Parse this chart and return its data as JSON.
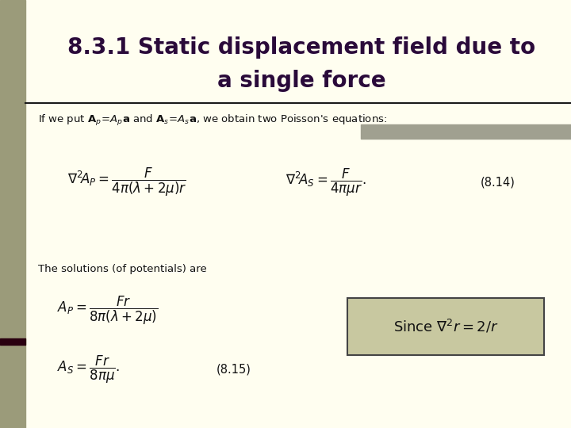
{
  "bg_color": "#fffef0",
  "left_bar_color": "#9b9b7a",
  "title_line1": "8.3.1 Static displacement field due to",
  "title_line2": "a single force",
  "title_color": "#2a0a3a",
  "title_fontsize": 20,
  "separator_color": "#1a1a1a",
  "eq_label1": "(8.14)",
  "eq_label2": "(8.15)",
  "box_bg": "#c8c8a0",
  "box_edge": "#444444"
}
